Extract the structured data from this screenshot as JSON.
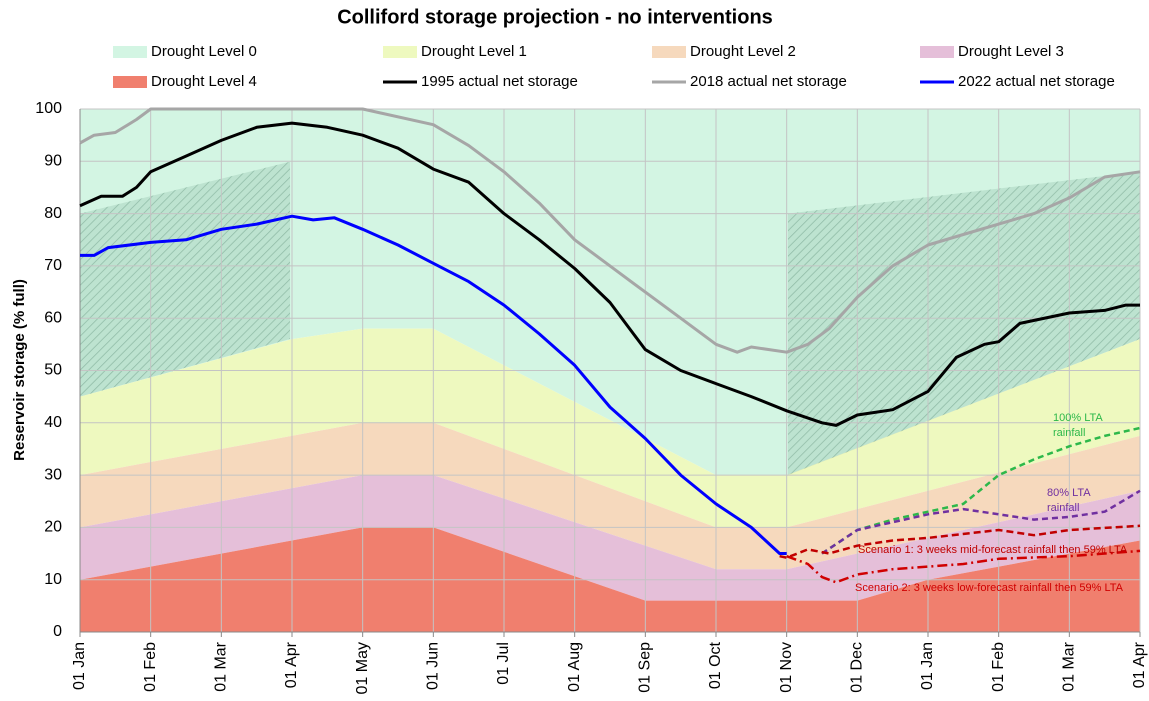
{
  "chart_data": {
    "type": "line",
    "title": "Colliford storage projection - no interventions",
    "y_label": "Reservoir storage (% full)",
    "xlim": [
      0,
      15
    ],
    "xticks": [
      {
        "value": 0,
        "label": "01 Jan"
      },
      {
        "value": 1,
        "label": "01 Feb"
      },
      {
        "value": 2,
        "label": "01 Mar"
      },
      {
        "value": 3,
        "label": "01 Apr"
      },
      {
        "value": 4,
        "label": "01 May"
      },
      {
        "value": 5,
        "label": "01 Jun"
      },
      {
        "value": 6,
        "label": "01 Jul"
      },
      {
        "value": 7,
        "label": "01 Aug"
      },
      {
        "value": 8,
        "label": "01 Sep"
      },
      {
        "value": 9,
        "label": "01 Oct"
      },
      {
        "value": 10,
        "label": "01 Nov"
      },
      {
        "value": 11,
        "label": "01 Dec"
      },
      {
        "value": 12,
        "label": "01 Jan"
      },
      {
        "value": 13,
        "label": "01 Feb"
      },
      {
        "value": 14,
        "label": "01 Mar"
      },
      {
        "value": 15,
        "label": "01 Apr"
      }
    ],
    "ylim": [
      0,
      100
    ],
    "yticks": [
      0,
      10,
      20,
      30,
      40,
      50,
      60,
      70,
      80,
      90,
      100
    ],
    "grid": true,
    "series": [
      {
        "name": "Drought Level 0",
        "color": "#d3f5e3",
        "fill": true
      },
      {
        "name": "Drought Level 1",
        "color": "#eef9bf",
        "fill": true,
        "x": [
          0,
          3,
          4,
          5,
          9,
          10,
          15
        ],
        "values": [
          45,
          56,
          58,
          58,
          30,
          30,
          56
        ]
      },
      {
        "name": "Drought Level 2",
        "color": "#f6d9bd",
        "fill": true,
        "x": [
          0,
          4,
          5,
          9,
          10,
          15
        ],
        "values": [
          30,
          40,
          40,
          20,
          20,
          37.5
        ]
      },
      {
        "name": "Drought Level 3",
        "color": "#e5bfd9",
        "fill": true,
        "x": [
          0,
          4,
          5,
          9,
          10,
          15
        ],
        "values": [
          20,
          30,
          30,
          12,
          12,
          27
        ]
      },
      {
        "name": "Drought Level 4",
        "color": "#f07f6e",
        "fill": true,
        "x": [
          0,
          4,
          5,
          8,
          11,
          12,
          15
        ],
        "values": [
          10,
          20,
          20,
          6,
          6,
          10,
          17.5
        ]
      },
      {
        "name": "1995 actual net storage",
        "color": "#000000",
        "x": [
          0,
          0.3,
          0.6,
          0.8,
          1,
          1.5,
          2,
          2.5,
          3,
          3.5,
          4,
          4.5,
          5,
          5.5,
          6,
          6.5,
          7,
          7.5,
          8,
          8.5,
          9,
          9.5,
          10,
          10.5,
          10.7,
          11,
          11.5,
          12,
          12.4,
          12.8,
          13,
          13.3,
          14,
          14.5,
          14.8,
          15
        ],
        "values": [
          81.5,
          83.3,
          83.3,
          85,
          88,
          91,
          94,
          96.5,
          97.3,
          96.5,
          95,
          92.5,
          88.5,
          86,
          80,
          75,
          69.5,
          63,
          54,
          50,
          47.5,
          45,
          42.3,
          40,
          39.5,
          41.5,
          42.5,
          46,
          52.5,
          55,
          55.5,
          59,
          61,
          61.5,
          62.5,
          62.5
        ]
      },
      {
        "name": "2018 actual net storage",
        "color": "#a6a6a6",
        "x": [
          0,
          0.2,
          0.5,
          0.8,
          1,
          1.5,
          2,
          3,
          4,
          5,
          5.5,
          6,
          6.5,
          7,
          7.5,
          8,
          8.5,
          9,
          9.3,
          9.5,
          10,
          10.3,
          10.6,
          11,
          11.5,
          12,
          12.5,
          13,
          13.5,
          14,
          14.5,
          15
        ],
        "values": [
          93.5,
          95,
          95.5,
          98,
          100,
          100,
          100,
          100,
          100,
          97,
          93,
          88,
          82,
          75,
          70,
          65,
          60,
          55,
          53.5,
          54.5,
          53.5,
          55,
          58,
          64,
          70,
          74,
          76,
          78,
          80,
          83,
          87,
          88
        ]
      },
      {
        "name": "2022 actual net storage",
        "color": "#0000ff",
        "x": [
          0,
          0.2,
          0.4,
          1,
          1.5,
          2,
          2.5,
          3,
          3.3,
          3.6,
          4,
          4.5,
          5,
          5.5,
          6,
          6.5,
          7,
          7.5,
          8,
          8.5,
          9,
          9.5,
          9.7,
          9.9,
          10
        ],
        "values": [
          72,
          72,
          73.5,
          74.5,
          75,
          77,
          78,
          79.5,
          78.8,
          79.2,
          77,
          74,
          70.5,
          67,
          62.5,
          57,
          51,
          43,
          37,
          30,
          24.5,
          20,
          17.5,
          15,
          15
        ]
      }
    ],
    "projections": [
      {
        "label_lines": [
          "100% LTA",
          "rainfall"
        ],
        "color": "#2db84a",
        "dash": "6,4",
        "x": [
          10.5,
          11,
          11.5,
          12,
          12.5,
          13,
          13.5,
          14,
          14.5,
          15
        ],
        "values": [
          15,
          19.5,
          21.5,
          23,
          24.5,
          30,
          33,
          35.5,
          37.5,
          39
        ]
      },
      {
        "label_lines": [
          "80% LTA",
          "rainfall"
        ],
        "color": "#7030a0",
        "dash": "6,4",
        "x": [
          10.5,
          11,
          11.5,
          12,
          12.5,
          13,
          13.5,
          14,
          14.5,
          15
        ],
        "values": [
          15,
          19.5,
          21,
          22.5,
          23.5,
          22.5,
          21.5,
          22,
          23,
          27
        ]
      },
      {
        "label_lines": [
          "Scenario 1: 3 weeks mid-forecast rainfall then 59% LTA"
        ],
        "color": "#c00000",
        "dash": "7,4",
        "x": [
          9.9,
          10,
          10.3,
          10.6,
          11,
          11.5,
          12,
          13,
          13.5,
          14,
          15
        ],
        "values": [
          14.5,
          14.2,
          15.8,
          15,
          16.5,
          17.5,
          18,
          19.5,
          18.5,
          19.5,
          20.3
        ]
      },
      {
        "label_lines": [
          "Scenario 2: 3 weeks low-forecast rainfall then 59% LTA"
        ],
        "color": "#d00000",
        "dash": "10,4,2,4",
        "x": [
          10,
          10.3,
          10.5,
          10.7,
          11,
          11.5,
          12,
          12.5,
          13,
          14,
          15
        ],
        "values": [
          14.5,
          13,
          10.5,
          9.5,
          11,
          12,
          12.5,
          13,
          14,
          14.5,
          15.5
        ]
      }
    ]
  }
}
